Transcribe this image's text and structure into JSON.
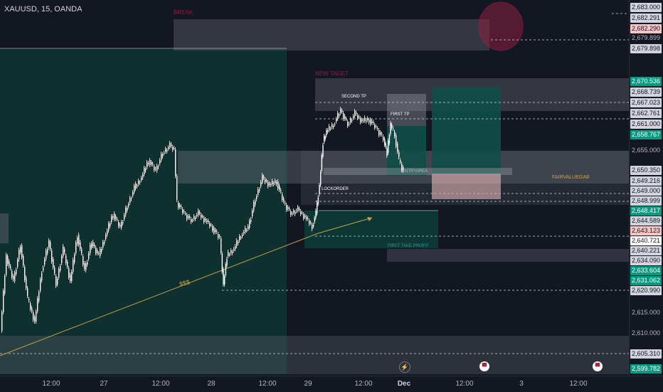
{
  "symbol": "XAUUSD, 15, OANDA",
  "annotations": {
    "new_target": "NEW TAGET",
    "second_tp": "SECOND TP",
    "first_tp": "FIRST TP",
    "lockorder": "LOCKORDER",
    "fair_value_gap": "FAIRVALUEGAB",
    "first_take_profit": "FIRST TAKE PROFIT",
    "entry_area": "ENTRYAREA",
    "dollars": "$$$",
    "top_box": "BREAK"
  },
  "price_scale": [
    {
      "text": "2,683.000",
      "style": "gray"
    },
    {
      "text": "2,682.291",
      "style": "gray"
    },
    {
      "text": "2,682.290",
      "style": "pink"
    },
    {
      "text": "2,679.899",
      "style": "tick"
    },
    {
      "text": "2,679.898",
      "style": "gray"
    },
    {
      "text": "2,670.536",
      "style": "green"
    },
    {
      "text": "2,668.739",
      "style": "gray"
    },
    {
      "text": "2,667.023",
      "style": "gray"
    },
    {
      "text": "2,662.761",
      "style": "gray"
    },
    {
      "text": "2,661.000",
      "style": "gray"
    },
    {
      "text": "2,658.767",
      "style": "green"
    },
    {
      "text": "2,655.000",
      "style": "tick"
    },
    {
      "text": "2,650.350",
      "style": "gray"
    },
    {
      "text": "2,649.216",
      "style": "gray"
    },
    {
      "text": "2,649.000",
      "style": "gray"
    },
    {
      "text": "2,648.999",
      "style": "gray"
    },
    {
      "text": "2,648.417",
      "style": "green"
    },
    {
      "text": "2,644.589",
      "style": "gray"
    },
    {
      "text": "2,643.123",
      "style": "pink"
    },
    {
      "text": "2,640.721",
      "style": "white"
    },
    {
      "text": "2,640.221",
      "style": "gray"
    },
    {
      "text": "2,634.090",
      "style": "gray"
    },
    {
      "text": "2,633.604",
      "style": "green"
    },
    {
      "text": "2,631.062",
      "style": "green"
    },
    {
      "text": "2,620.990",
      "style": "gray"
    },
    {
      "text": "2,615.000",
      "style": "tick"
    },
    {
      "text": "2,610.000",
      "style": "tick"
    },
    {
      "text": "2,605.310",
      "style": "gray"
    },
    {
      "text": "2,599.782",
      "style": "green"
    }
  ],
  "time_scale": [
    {
      "text": "12:00",
      "bold": false
    },
    {
      "text": "27",
      "bold": false
    },
    {
      "text": "12:00",
      "bold": false
    },
    {
      "text": "28",
      "bold": false
    },
    {
      "text": "12:00",
      "bold": false
    },
    {
      "text": "29",
      "bold": false
    },
    {
      "text": "12:00",
      "bold": false
    },
    {
      "text": "Dec",
      "bold": true
    },
    {
      "text": "12:00",
      "bold": false
    },
    {
      "text": "3",
      "bold": false
    },
    {
      "text": "12:00",
      "bold": false
    }
  ],
  "events": [
    {
      "icon": "lightning-icon",
      "glyph": "⚡"
    },
    {
      "icon": "us-flag-icon",
      "glyph": "▀"
    },
    {
      "icon": "us-flag-icon",
      "glyph": "▀"
    }
  ],
  "colors": {
    "background": "#131722",
    "up": "#ffffff",
    "down": "#ffffff",
    "zone_green": "#0d3b36",
    "zone_gray": "#3a3f4b",
    "trendline": "#c9a14a",
    "circle": "#8b2040"
  }
}
